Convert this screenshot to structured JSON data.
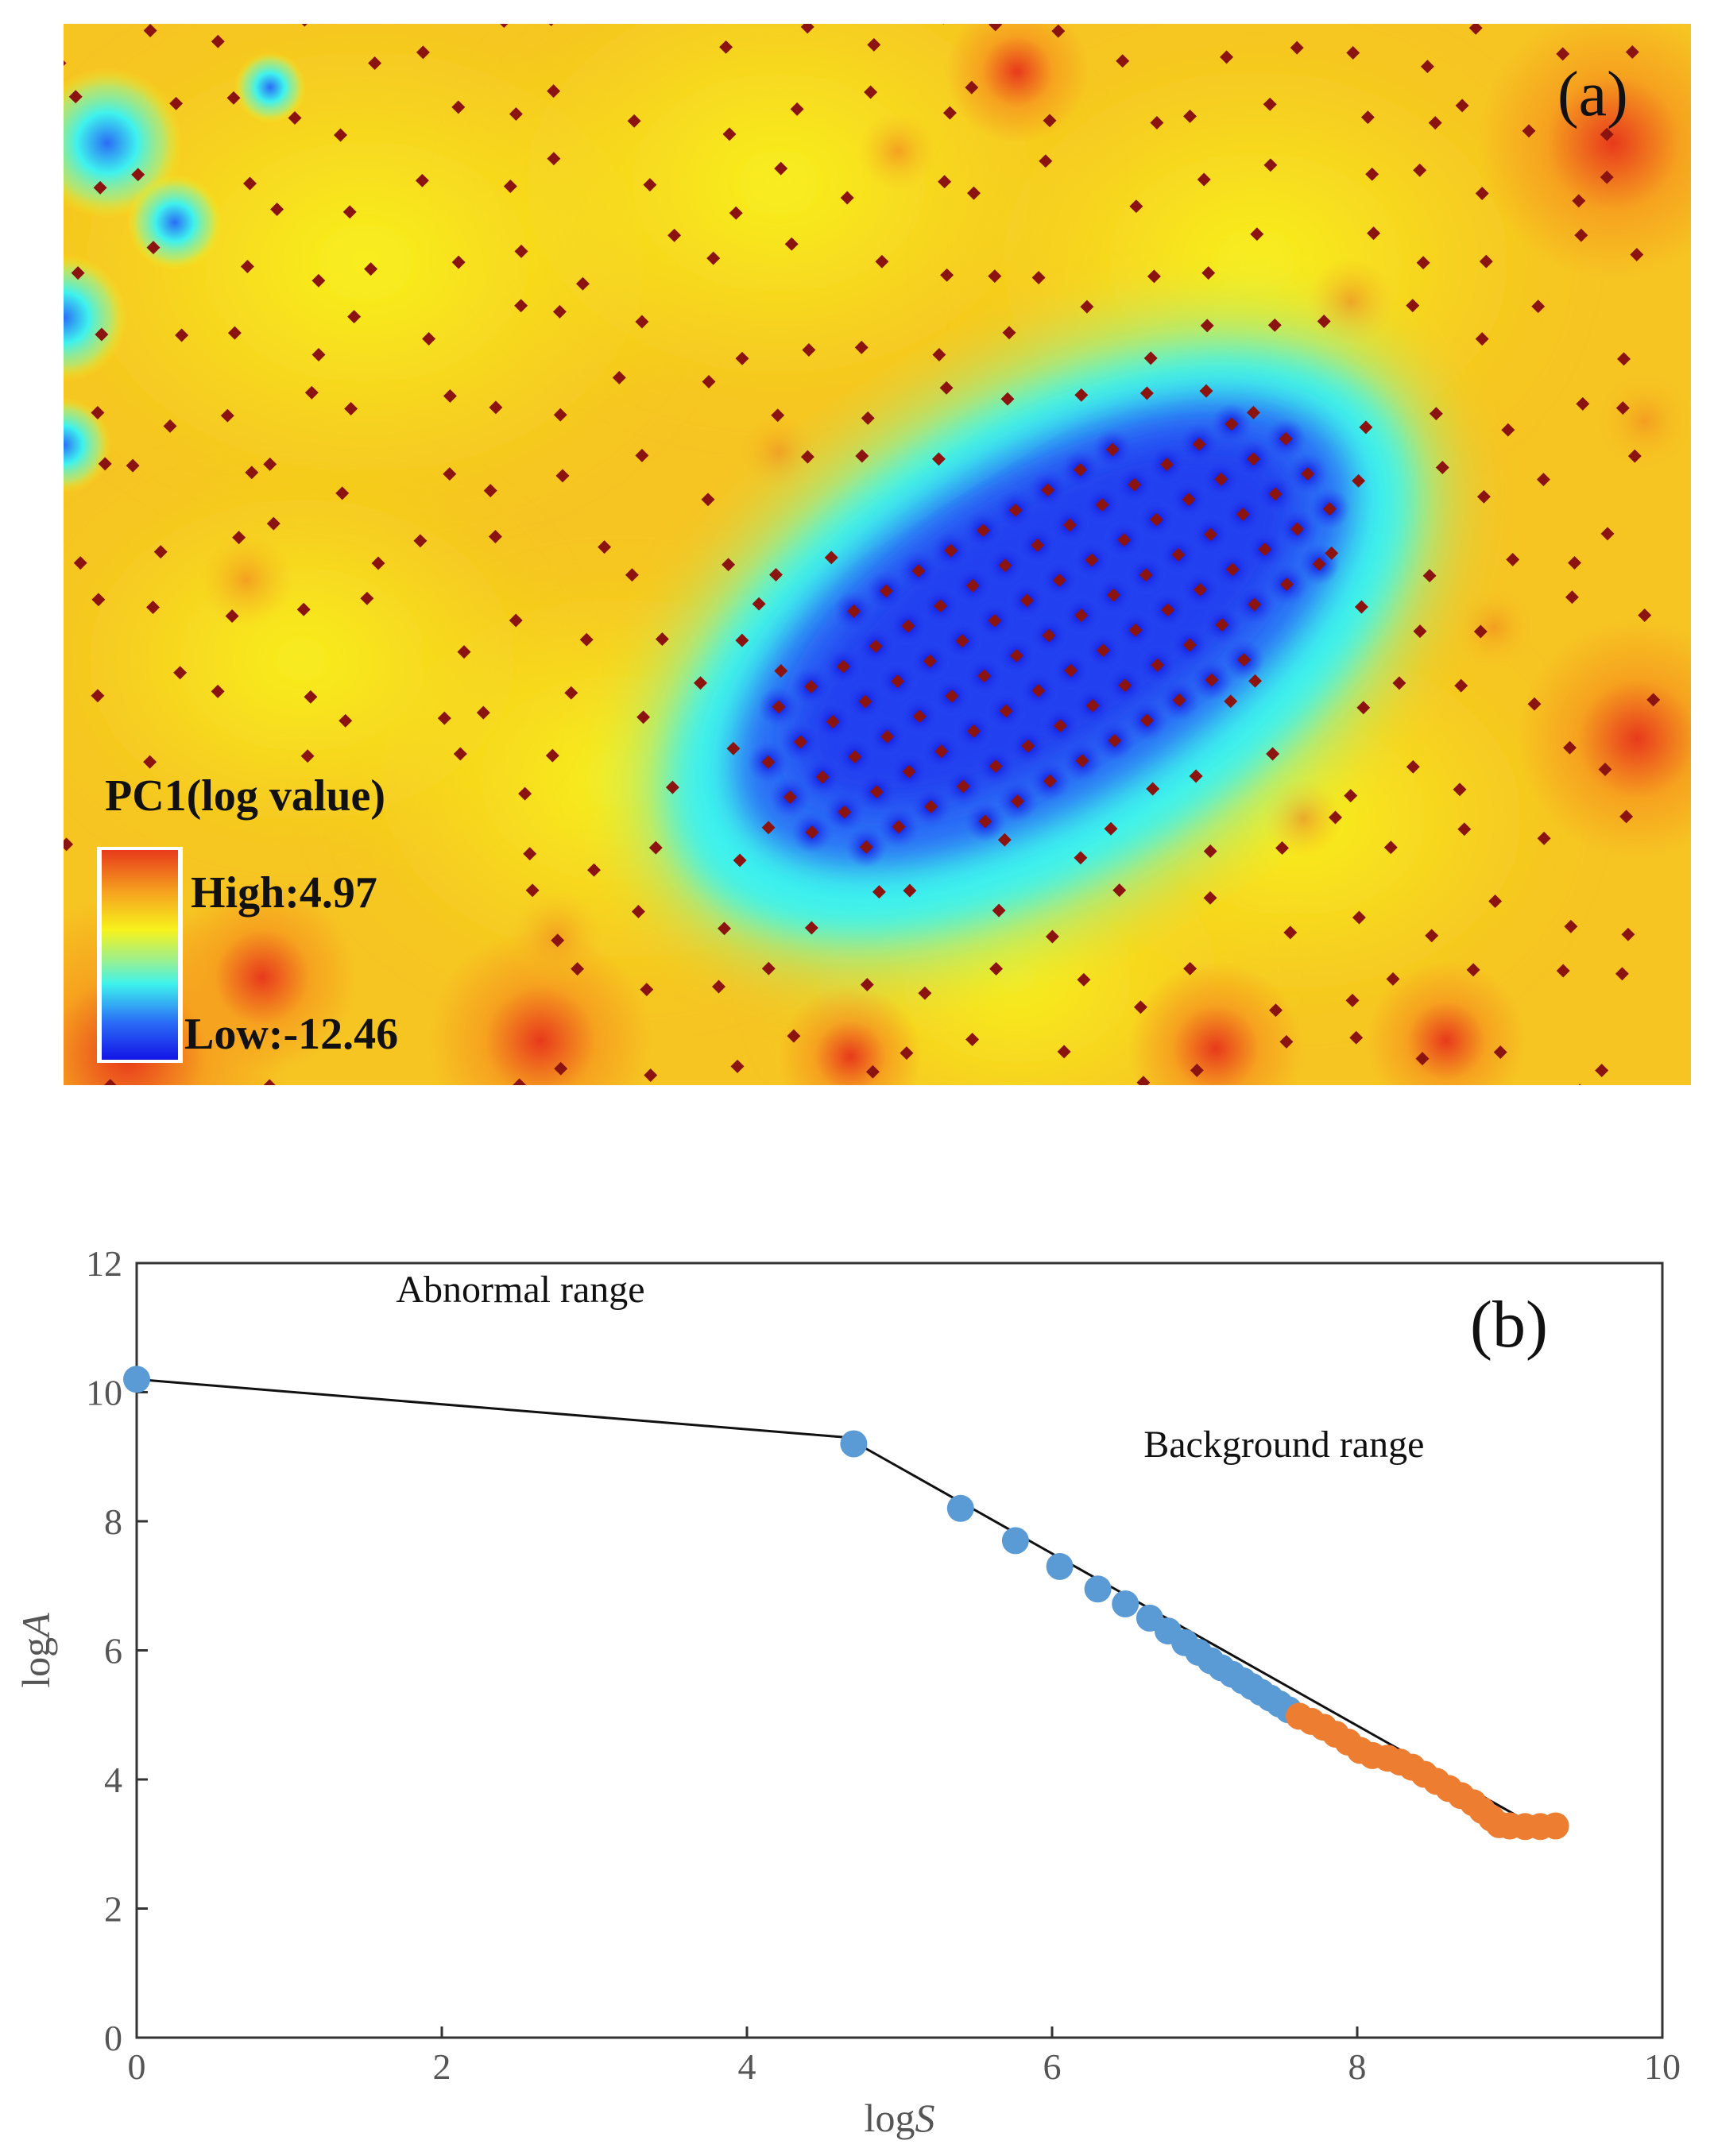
{
  "map": {
    "panel_label": "(a)",
    "legend_title": "PC1(log value)",
    "legend_high": "High:4.97",
    "legend_low": "Low:-12.46",
    "colors": {
      "high": "#e83a1c",
      "orange": "#f6a21f",
      "yellow": "#f7f21c",
      "green": "#9ff08a",
      "cyan": "#3ef2ee",
      "blue": "#2a6df6",
      "low": "#1414e6",
      "sample_point": "#8b1410"
    }
  },
  "chart_data": {
    "type": "scatter",
    "panel_label": "(b)",
    "xlabel": "logS",
    "ylabel": "logA",
    "xlim": [
      0,
      10
    ],
    "ylim": [
      0,
      12
    ],
    "xticks": [
      0,
      2,
      4,
      6,
      8,
      10
    ],
    "yticks": [
      0,
      2,
      4,
      6,
      8,
      10,
      12
    ],
    "grid": false,
    "annotations": [
      {
        "text": "Abnormal range",
        "x": 1.7,
        "y": 11.4
      },
      {
        "text": "Background range",
        "x": 6.6,
        "y": 9.0
      }
    ],
    "series": [
      {
        "color": "#5b9bd5",
        "points": [
          [
            0.0,
            10.2
          ],
          [
            4.7,
            9.2
          ],
          [
            5.4,
            8.2
          ],
          [
            5.76,
            7.7
          ],
          [
            6.05,
            7.3
          ],
          [
            6.3,
            6.95
          ],
          [
            6.48,
            6.72
          ],
          [
            6.64,
            6.5
          ],
          [
            6.76,
            6.3
          ],
          [
            6.87,
            6.12
          ],
          [
            6.96,
            5.97
          ],
          [
            7.04,
            5.84
          ],
          [
            7.11,
            5.73
          ],
          [
            7.18,
            5.63
          ],
          [
            7.25,
            5.53
          ],
          [
            7.31,
            5.44
          ],
          [
            7.37,
            5.35
          ],
          [
            7.43,
            5.26
          ],
          [
            7.49,
            5.17
          ],
          [
            7.55,
            5.08
          ]
        ]
      },
      {
        "color": "#ed7d31",
        "points": [
          [
            7.62,
            4.98
          ],
          [
            7.7,
            4.9
          ],
          [
            7.78,
            4.81
          ],
          [
            7.86,
            4.7
          ],
          [
            7.94,
            4.58
          ],
          [
            8.02,
            4.45
          ],
          [
            8.1,
            4.37
          ],
          [
            8.2,
            4.33
          ],
          [
            8.28,
            4.27
          ],
          [
            8.36,
            4.19
          ],
          [
            8.44,
            4.08
          ],
          [
            8.52,
            3.97
          ],
          [
            8.6,
            3.86
          ],
          [
            8.68,
            3.75
          ],
          [
            8.76,
            3.64
          ],
          [
            8.82,
            3.52
          ],
          [
            8.88,
            3.4
          ],
          [
            8.93,
            3.3
          ],
          [
            9.0,
            3.28
          ],
          [
            9.1,
            3.27
          ],
          [
            9.2,
            3.27
          ],
          [
            9.3,
            3.28
          ]
        ]
      }
    ],
    "fit_lines": [
      {
        "points": [
          [
            0.0,
            10.2
          ],
          [
            4.65,
            9.3
          ]
        ]
      },
      {
        "points": [
          [
            4.65,
            9.3
          ],
          [
            9.3,
            3.1
          ]
        ]
      }
    ]
  }
}
